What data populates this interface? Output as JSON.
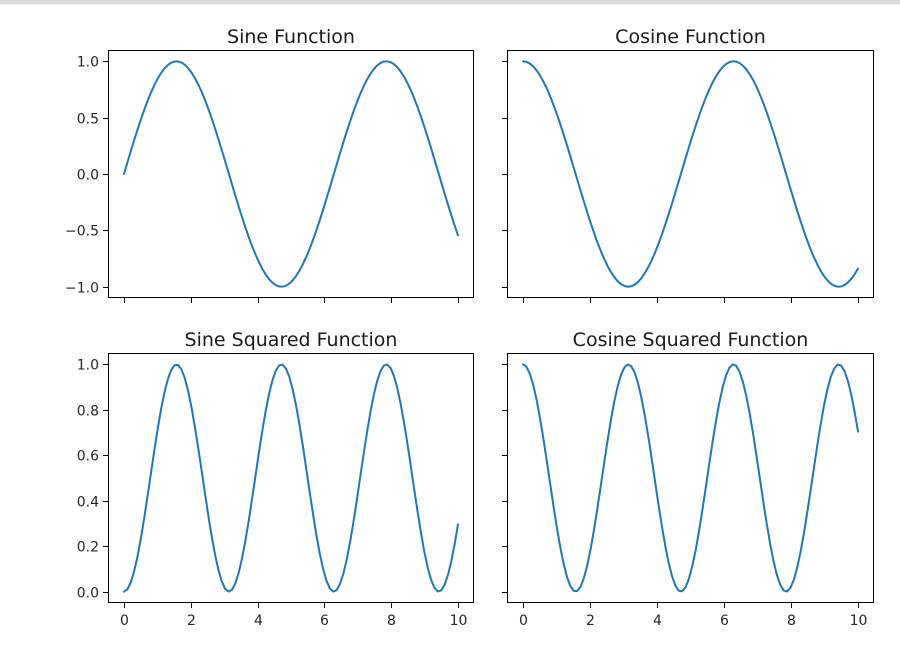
{
  "chart_data": [
    {
      "type": "line",
      "title": "Sine Function",
      "function": "sin(x)",
      "xlim": [
        0,
        10
      ],
      "ylim": [
        -1.1,
        1.1
      ],
      "xticks": [
        0,
        2,
        4,
        6,
        8,
        10
      ],
      "xtick_labels": [],
      "yticks": [
        1.0,
        0.5,
        0.0,
        -0.5,
        -1.0
      ],
      "ytick_labels": [
        "1.0",
        "0.5",
        "0.0",
        "−0.5",
        "−1.0"
      ],
      "series": [
        {
          "color": "#1f77b4",
          "x_range": [
            0,
            10
          ],
          "points": 100
        }
      ]
    },
    {
      "type": "line",
      "title": "Cosine Function",
      "function": "cos(x)",
      "xlim": [
        0,
        10
      ],
      "ylim": [
        -1.1,
        1.1
      ],
      "xticks": [
        0,
        2,
        4,
        6,
        8,
        10
      ],
      "xtick_labels": [],
      "yticks": [
        1.0,
        0.5,
        0.0,
        -0.5,
        -1.0
      ],
      "ytick_labels": [],
      "series": [
        {
          "color": "#1f77b4",
          "x_range": [
            0,
            10
          ],
          "points": 100
        }
      ]
    },
    {
      "type": "line",
      "title": "Sine Squared Function",
      "function": "sin(x)^2",
      "xlim": [
        0,
        10
      ],
      "ylim": [
        -0.05,
        1.05
      ],
      "xticks": [
        0,
        2,
        4,
        6,
        8,
        10
      ],
      "xtick_labels": [
        "0",
        "2",
        "4",
        "6",
        "8",
        "10"
      ],
      "yticks": [
        1.0,
        0.8,
        0.6,
        0.4,
        0.2,
        0.0
      ],
      "ytick_labels": [
        "1.0",
        "0.8",
        "0.6",
        "0.4",
        "0.2",
        "0.0"
      ],
      "series": [
        {
          "color": "#1f77b4",
          "x_range": [
            0,
            10
          ],
          "points": 100
        }
      ]
    },
    {
      "type": "line",
      "title": "Cosine Squared Function",
      "function": "cos(x)^2",
      "xlim": [
        0,
        10
      ],
      "ylim": [
        -0.05,
        1.05
      ],
      "xticks": [
        0,
        2,
        4,
        6,
        8,
        10
      ],
      "xtick_labels": [
        "0",
        "2",
        "4",
        "6",
        "8",
        "10"
      ],
      "yticks": [
        1.0,
        0.8,
        0.6,
        0.4,
        0.2,
        0.0
      ],
      "ytick_labels": [],
      "series": [
        {
          "color": "#1f77b4",
          "x_range": [
            0,
            10
          ],
          "points": 100
        }
      ]
    }
  ]
}
